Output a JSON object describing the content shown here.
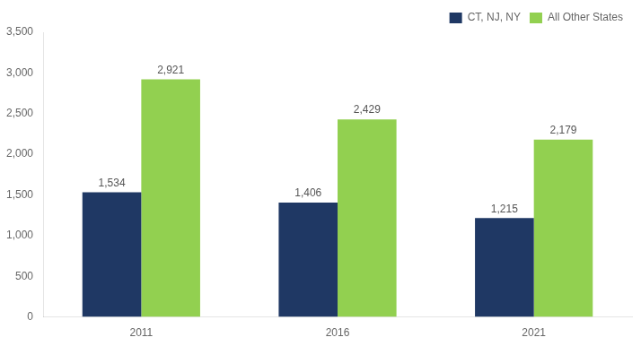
{
  "chart_data": {
    "type": "bar",
    "categories": [
      "2011",
      "2016",
      "2021"
    ],
    "series": [
      {
        "name": "CT, NJ, NY",
        "color": "#1f3864",
        "values": [
          1534,
          1406,
          1215
        ],
        "value_labels": [
          "1,534",
          "1,406",
          "1,215"
        ]
      },
      {
        "name": "All Other States",
        "color": "#92d050",
        "values": [
          2921,
          2429,
          2179
        ],
        "value_labels": [
          "2,921",
          "2,429",
          "2,179"
        ]
      }
    ],
    "ylim": [
      0,
      3500
    ],
    "yticks": [
      0,
      500,
      {
        "value": 1000,
        "label": "1,000"
      },
      {
        "value": 1500,
        "label": "1,500"
      },
      {
        "value": 2000,
        "label": "2,000"
      },
      {
        "value": 2500,
        "label": "2,500"
      },
      {
        "value": 3000,
        "label": "3,000"
      },
      {
        "value": 3500,
        "label": "3,500"
      }
    ],
    "grid": false,
    "legend": "upper right",
    "data_labels": true
  }
}
